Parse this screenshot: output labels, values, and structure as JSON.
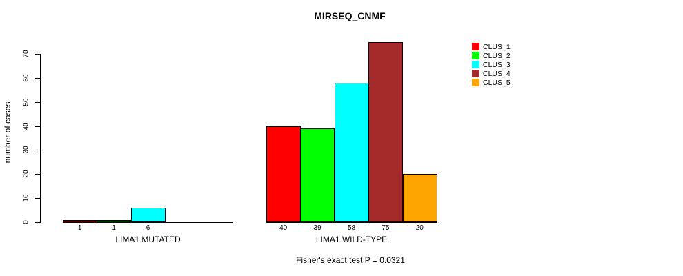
{
  "chart_data": {
    "type": "bar",
    "title": "MIRSEQ_CNMF",
    "ylabel": "number of cases",
    "ylim": [
      0,
      70
    ],
    "yticks": [
      0,
      10,
      20,
      30,
      40,
      50,
      60,
      70
    ],
    "grid": false,
    "legend_position": "right",
    "clusters": [
      {
        "name": "CLUS_1",
        "color": "#FF0000"
      },
      {
        "name": "CLUS_2",
        "color": "#00FF00"
      },
      {
        "name": "CLUS_3",
        "color": "#00FFFF"
      },
      {
        "name": "CLUS_4",
        "color": "#A52A2A"
      },
      {
        "name": "CLUS_5",
        "color": "#FFA500"
      }
    ],
    "groups": [
      {
        "label": "LIMA1 MUTATED",
        "values": [
          1,
          1,
          6,
          0,
          0
        ],
        "bar_labels": [
          "1",
          "1",
          "6",
          "",
          ""
        ]
      },
      {
        "label": "LIMA1 WILD-TYPE",
        "values": [
          40,
          39,
          58,
          75,
          20
        ],
        "bar_labels": [
          "40",
          "39",
          "58",
          "75",
          "20"
        ]
      }
    ],
    "footer": "Fisher's exact test P = 0.0321"
  }
}
